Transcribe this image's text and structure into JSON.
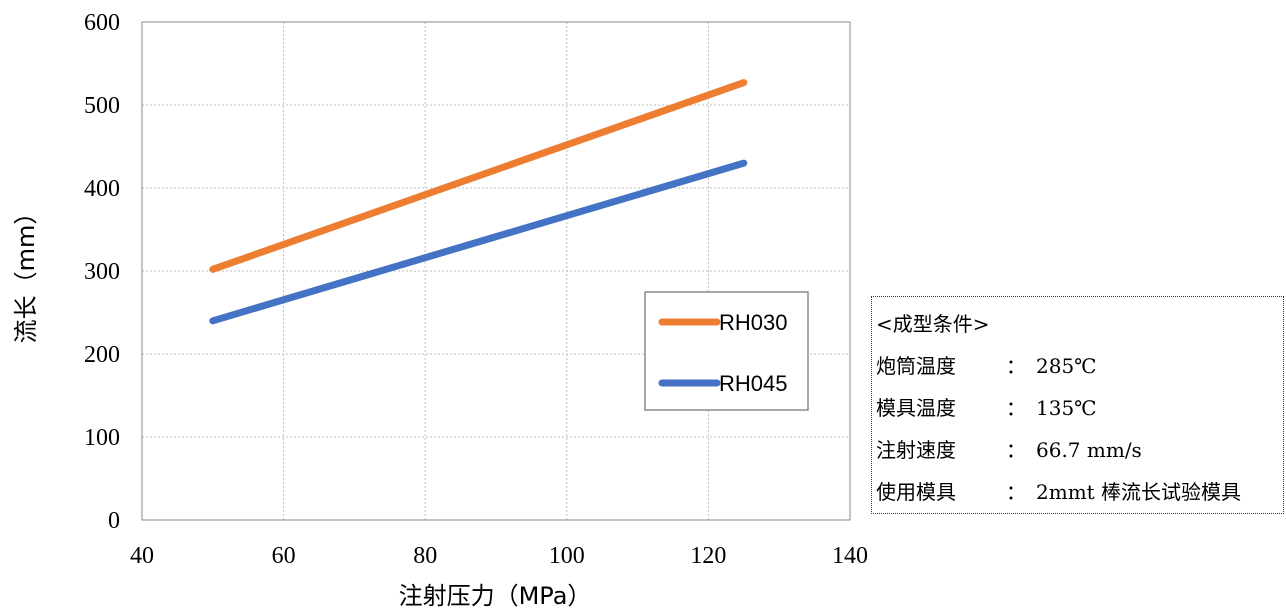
{
  "chart_data": {
    "type": "line",
    "xlabel": "注射压力（MPa）",
    "ylabel": "流长（mm）",
    "xlim": [
      40,
      140
    ],
    "ylim": [
      0,
      600
    ],
    "xticks": [
      40,
      60,
      80,
      100,
      120,
      140
    ],
    "yticks": [
      0,
      100,
      200,
      300,
      400,
      500,
      600
    ],
    "grid": true,
    "legend": "center-right",
    "series": [
      {
        "name": "RH030",
        "color": "#ED7D31",
        "x": [
          50,
          125
        ],
        "y": [
          302,
          527
        ]
      },
      {
        "name": "RH045",
        "color": "#4472C4",
        "x": [
          50,
          125
        ],
        "y": [
          240,
          430
        ]
      }
    ]
  },
  "conditions": {
    "title": "<成型条件>",
    "rows": [
      {
        "label": "炮筒温度",
        "sep": "：",
        "value": "285℃"
      },
      {
        "label": "模具温度",
        "sep": "：",
        "value": "135℃"
      },
      {
        "label": "注射速度",
        "sep": "：",
        "value": "66.7 mm/s"
      },
      {
        "label": "使用模具",
        "sep": "：",
        "value": "2mmt 棒流长试验模具"
      }
    ]
  }
}
